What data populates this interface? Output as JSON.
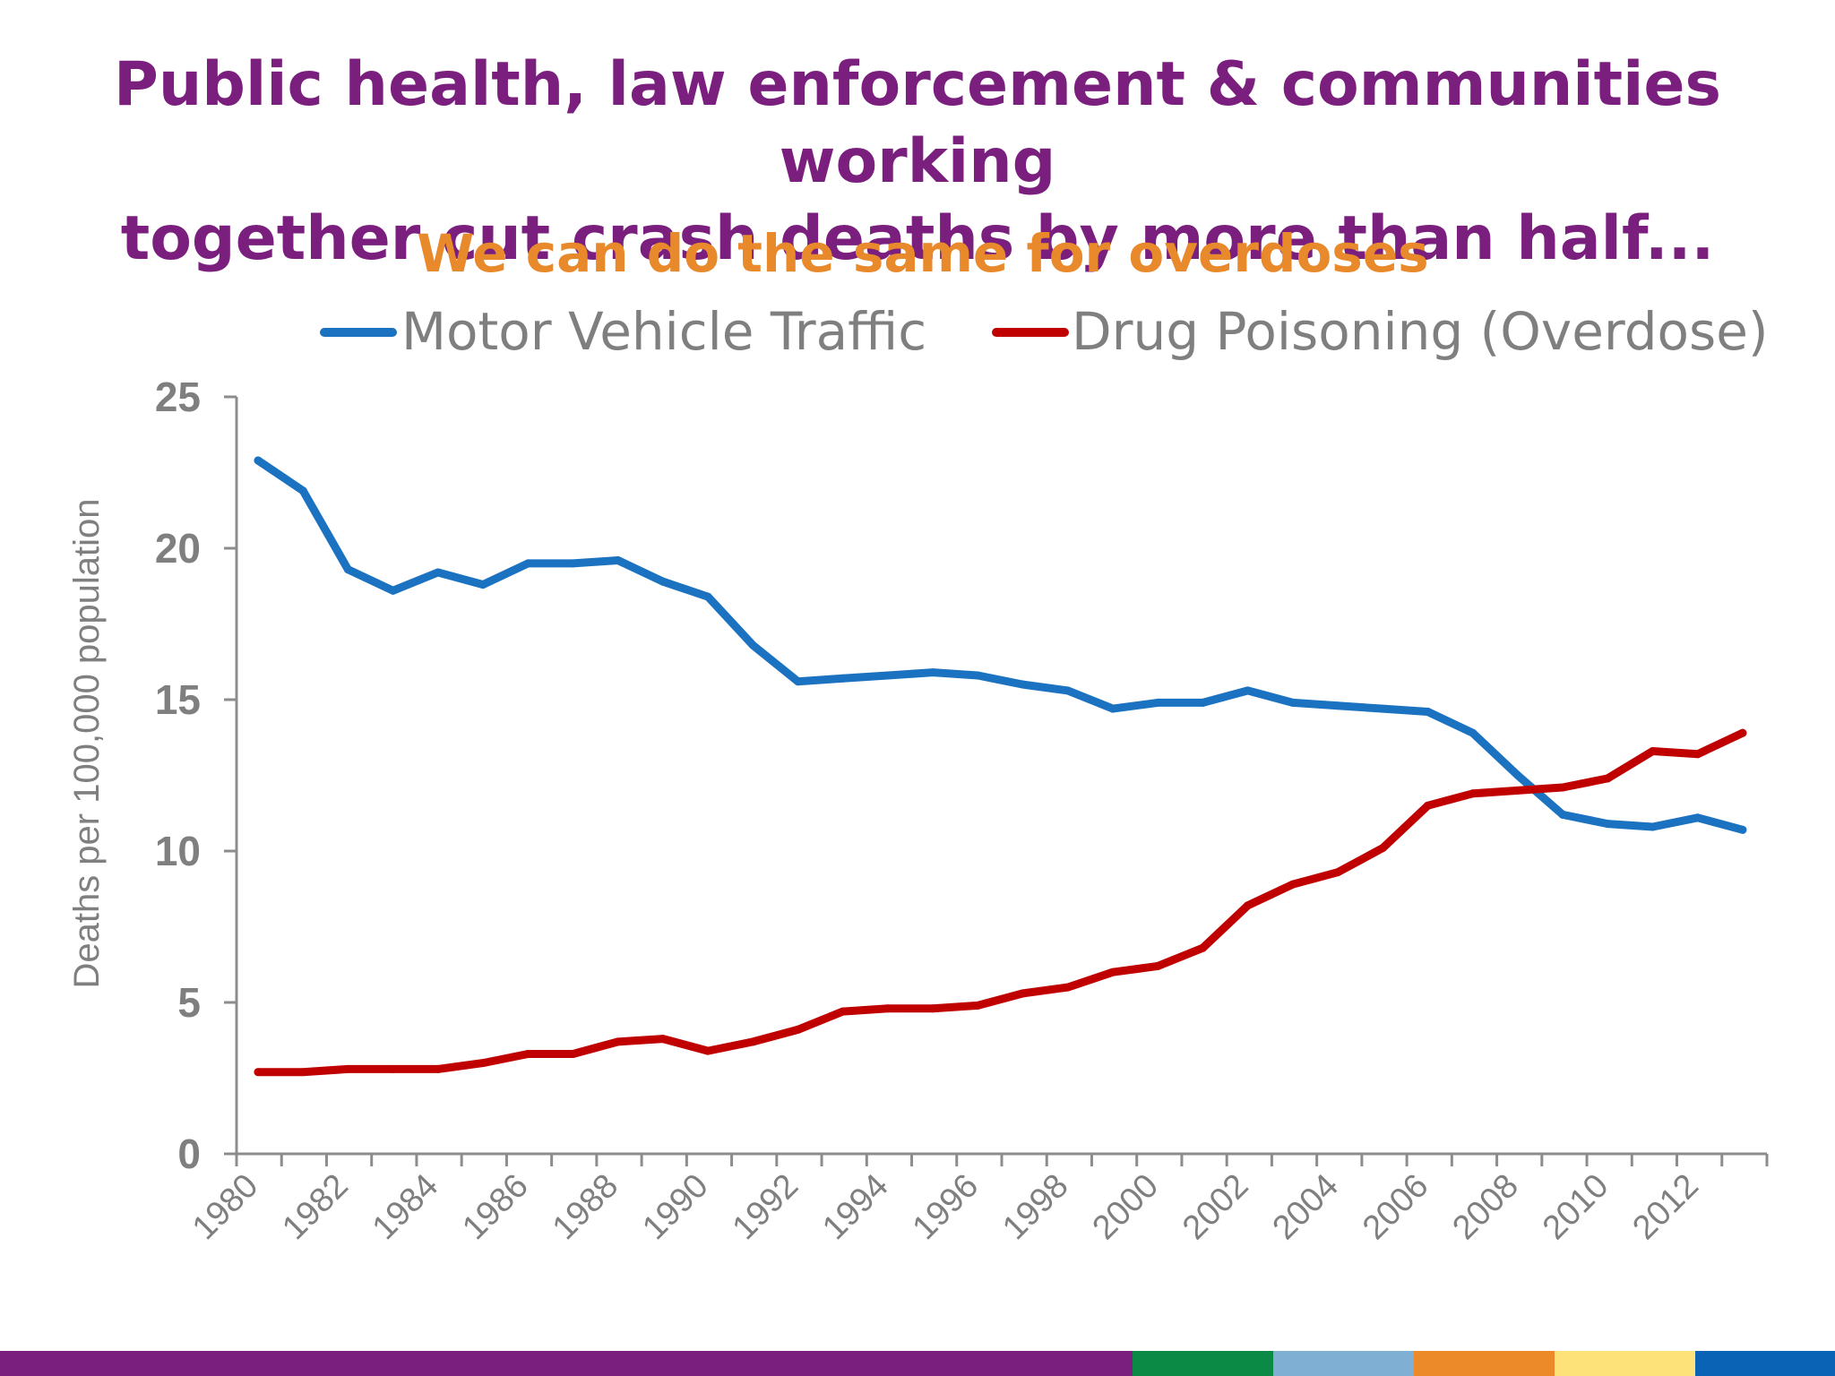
{
  "slide": {
    "title_line1": "Public health, law enforcement & communities working",
    "title_line2": "together cut crash deaths by more than half...",
    "subtitle": "We can do the same for overdoses",
    "title_color": "#7a1f7d",
    "subtitle_color": "#e8892b",
    "footer_colors": [
      "#7a1f7d",
      "#0a8a45",
      "#7fb0d4",
      "#ec8a2a",
      "#fde27a",
      "#0b63b5"
    ]
  },
  "chart_data": {
    "type": "line",
    "title": "",
    "xlabel": "",
    "ylabel": "Deaths per 100,000 population",
    "ylim": [
      0,
      25
    ],
    "yticks": [
      "0",
      "5",
      "10",
      "15",
      "20",
      "25"
    ],
    "xtick_labels": [
      "1980",
      "1982",
      "1984",
      "1986",
      "1988",
      "1990",
      "1992",
      "1994",
      "1996",
      "1998",
      "2000",
      "2002",
      "2004",
      "2006",
      "2008",
      "2010",
      "2012"
    ],
    "x": [
      1980,
      1981,
      1982,
      1983,
      1984,
      1985,
      1986,
      1987,
      1988,
      1989,
      1990,
      1991,
      1992,
      1993,
      1994,
      1995,
      1996,
      1997,
      1998,
      1999,
      2000,
      2001,
      2002,
      2003,
      2004,
      2005,
      2006,
      2007,
      2008,
      2009,
      2010,
      2011,
      2012,
      2013
    ],
    "legend_position": "top",
    "grid": false,
    "series": [
      {
        "name": "Motor Vehicle Traffic",
        "color": "#1a72c1",
        "values": [
          22.9,
          21.9,
          19.3,
          18.6,
          19.2,
          18.8,
          19.5,
          19.5,
          19.6,
          18.9,
          18.4,
          16.8,
          15.6,
          15.7,
          15.8,
          15.9,
          15.8,
          15.5,
          15.3,
          14.7,
          14.9,
          14.9,
          15.3,
          14.9,
          14.8,
          14.7,
          14.6,
          13.9,
          12.5,
          11.2,
          10.9,
          10.8,
          11.1,
          10.7
        ]
      },
      {
        "name": "Drug Poisoning (Overdose)",
        "color": "#c00000",
        "values": [
          2.7,
          2.7,
          2.8,
          2.8,
          2.8,
          3.0,
          3.3,
          3.3,
          3.7,
          3.8,
          3.4,
          3.7,
          4.1,
          4.7,
          4.8,
          4.8,
          4.9,
          5.3,
          5.5,
          6.0,
          6.2,
          6.8,
          8.2,
          8.9,
          9.3,
          10.1,
          11.5,
          11.9,
          12.0,
          12.1,
          12.4,
          13.3,
          13.2,
          13.9
        ]
      }
    ]
  }
}
